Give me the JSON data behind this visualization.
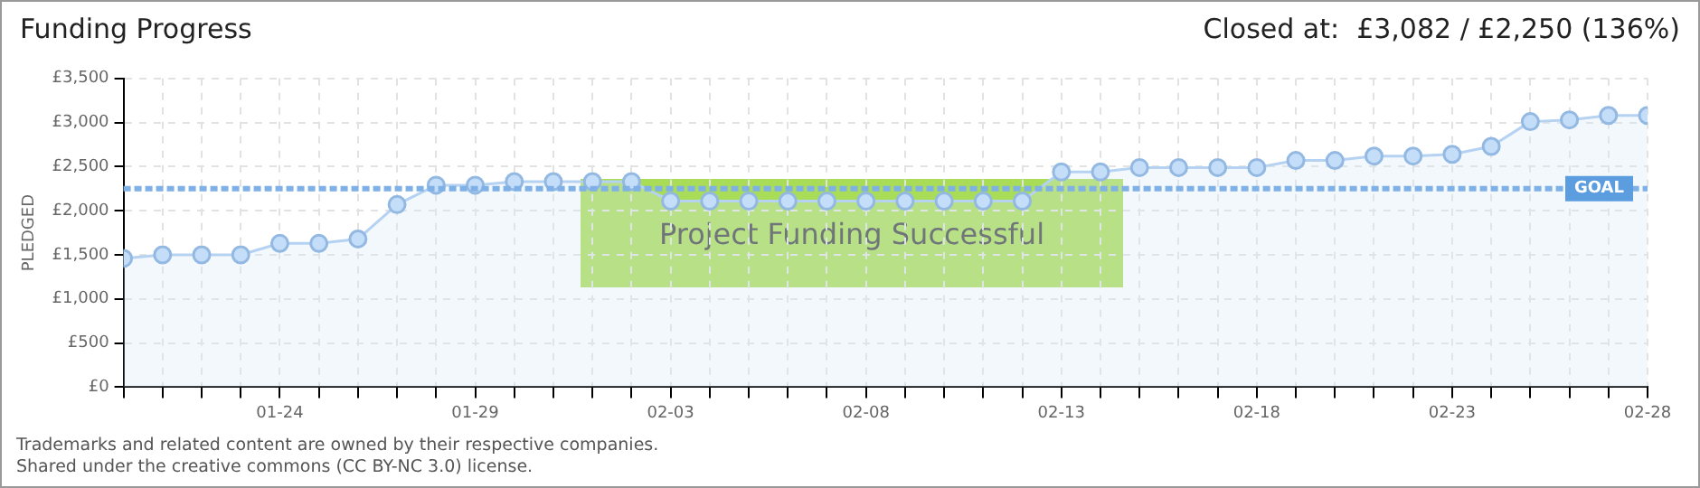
{
  "chart_data": {
    "type": "area",
    "title": "Funding Progress",
    "subtitle": "Closed at:  £3,082 / £2,250 (136%)",
    "ylabel": "PLEDGED",
    "x": [
      "--01-20",
      "--01-21",
      "--01-22",
      "--01-23",
      "--01-24",
      "--01-25",
      "--01-26",
      "--01-27",
      "--01-28",
      "--01-29",
      "--01-30",
      "--01-31",
      "--02-01",
      "--02-02",
      "--02-03",
      "--02-04",
      "--02-05",
      "--02-06",
      "--02-07",
      "--02-08",
      "--02-09",
      "--02-10",
      "--02-11",
      "--02-12",
      "--02-13",
      "--02-14",
      "--02-15",
      "--02-16",
      "--02-17",
      "--02-18",
      "--02-19",
      "--02-20",
      "--02-21",
      "--02-22",
      "--02-23",
      "--02-24",
      "--02-25",
      "--02-26",
      "--02-27",
      "--02-28"
    ],
    "series": [
      {
        "color": "#b5d2f2",
        "values": [
          1460,
          1500,
          1500,
          1500,
          1630,
          1630,
          1680,
          2070,
          2290,
          2290,
          2330,
          2330,
          2330,
          2330,
          2110,
          2110,
          2110,
          2110,
          2110,
          2110,
          2110,
          2110,
          2110,
          2110,
          2440,
          2440,
          2490,
          2490,
          2490,
          2490,
          2570,
          2570,
          2620,
          2620,
          2640,
          2730,
          3010,
          3030,
          3080,
          3080
        ]
      }
    ],
    "xlim": [
      "--01-20",
      "--02-28"
    ],
    "xticks": [
      {
        "value": "--01-20",
        "label": null
      },
      {
        "value": "--01-24",
        "label": "01-24"
      },
      {
        "value": "--01-29",
        "label": "01-29"
      },
      {
        "value": "--02-03",
        "label": "02-03"
      },
      {
        "value": "--02-08",
        "label": "02-08"
      },
      {
        "value": "--02-13",
        "label": "02-13"
      },
      {
        "value": "--02-18",
        "label": "02-18"
      },
      {
        "value": "--02-23",
        "label": "02-23"
      },
      {
        "value": "--02-28",
        "label": "02-28"
      }
    ],
    "ylim": [
      0,
      3500
    ],
    "yticks": [
      {
        "value": 0,
        "label": "£0"
      },
      {
        "value": 500,
        "label": "£500"
      },
      {
        "value": 1000,
        "label": "£1,000"
      },
      {
        "value": 1500,
        "label": "£1,500"
      },
      {
        "value": 2000,
        "label": "£2,000"
      },
      {
        "value": 2500,
        "label": "£2,500"
      },
      {
        "value": 3000,
        "label": "£3,000"
      },
      {
        "value": 3500,
        "label": "£3,500"
      }
    ],
    "ref_lines": [
      {
        "axis": "y",
        "value": 2250,
        "label": "GOAL",
        "color": "#7fb0e6",
        "line_style": "dashed"
      }
    ],
    "annotations": [
      "Project Funding Successful",
      "Trademarks and related content are owned by their respective companies.",
      "Shared under the creative commons (CC BY-NC 3.0) license."
    ],
    "grid": true,
    "marker": "circle",
    "line_style": "solid"
  }
}
